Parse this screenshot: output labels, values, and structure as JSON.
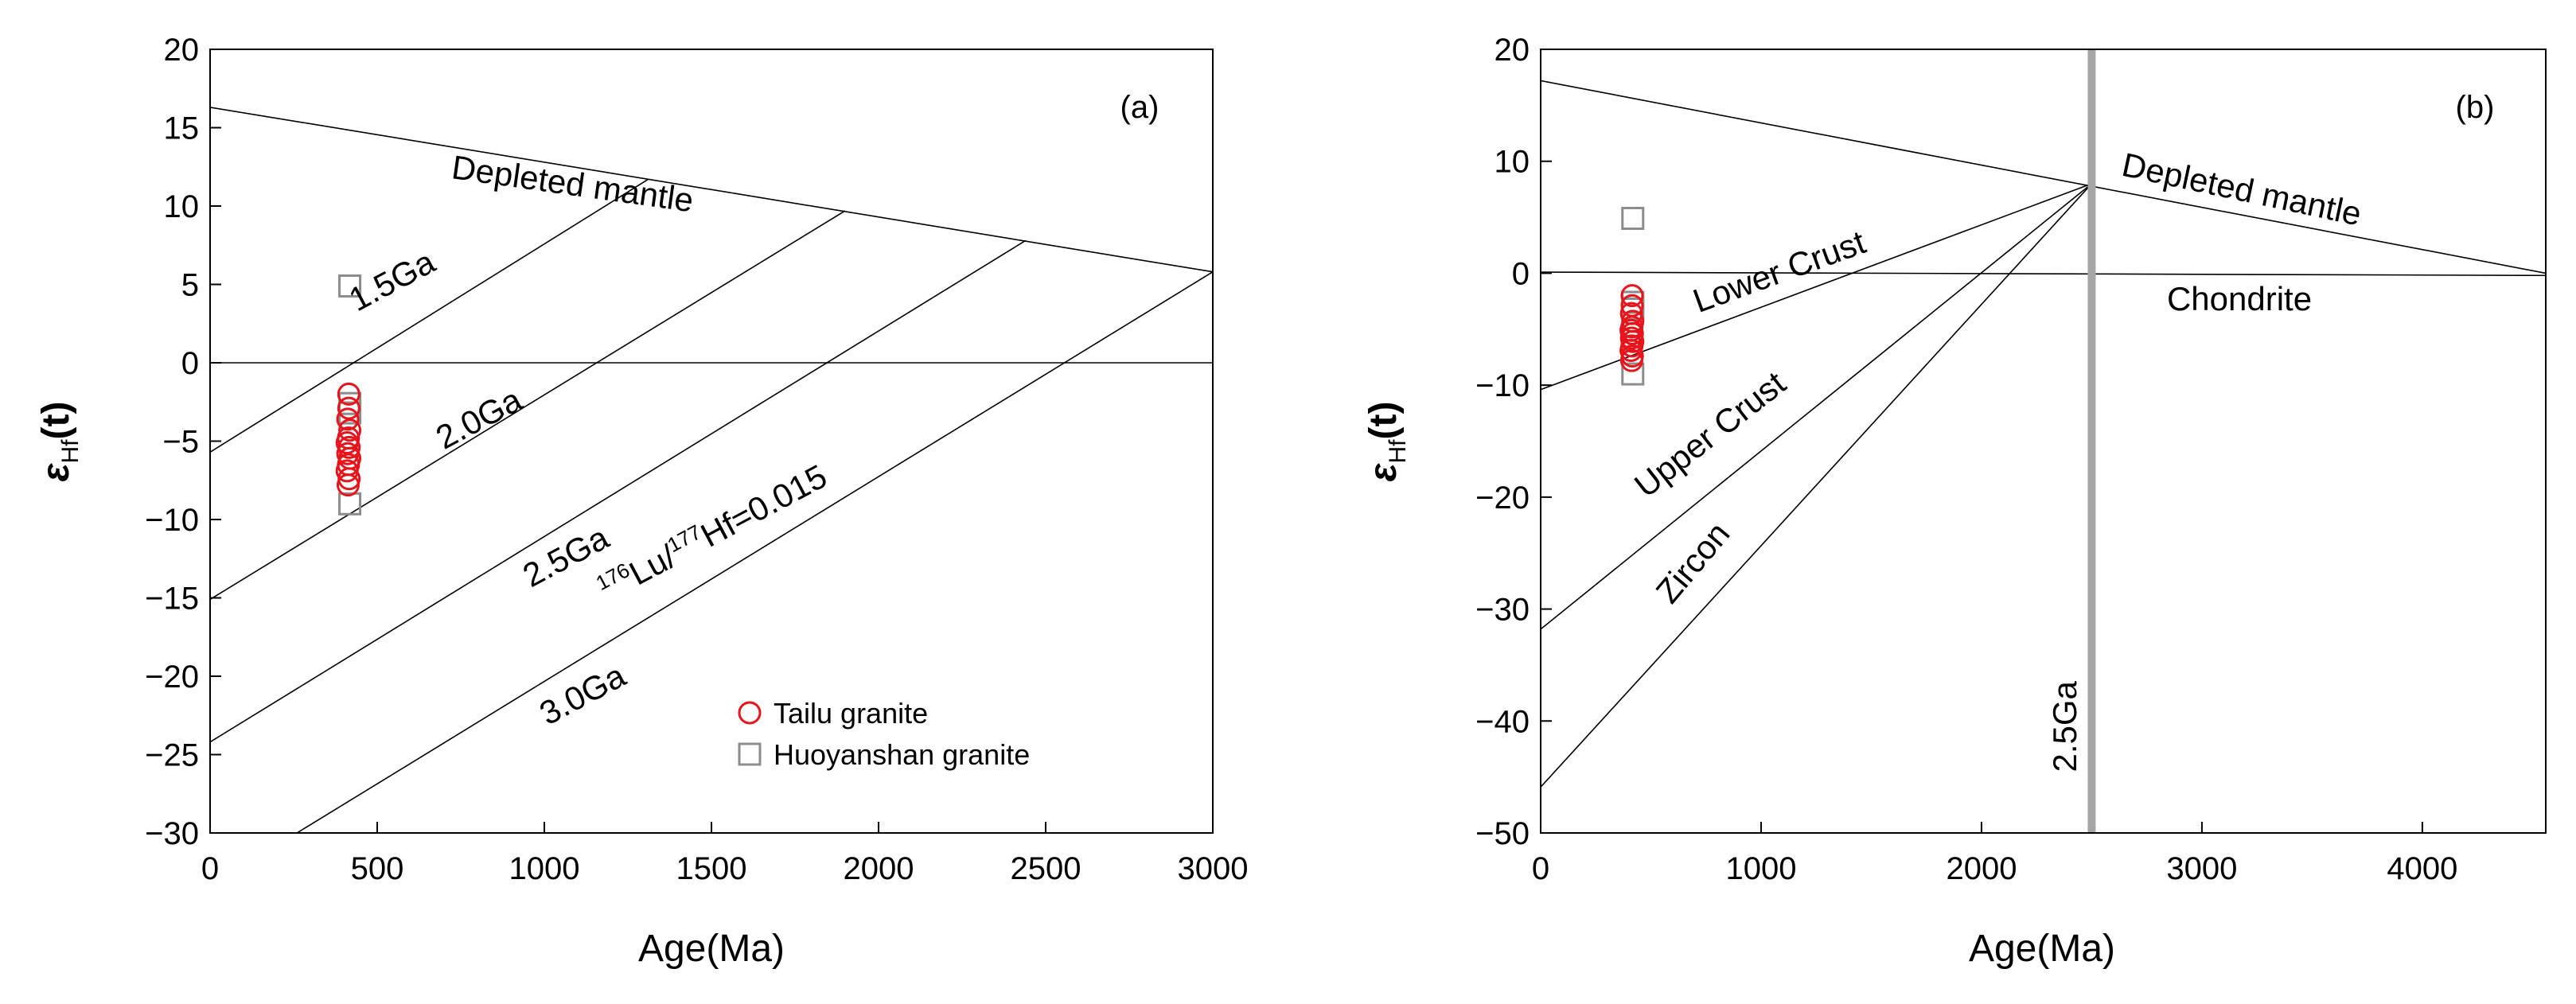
{
  "chart_data": [
    {
      "panel": "(a)",
      "type": "scatter",
      "xlabel": "Age(Ma)",
      "ylabel_main": "ε",
      "ylabel_sub": "Hf",
      "ylabel_tail": "(t)",
      "xlim": [
        0,
        3000
      ],
      "ylim": [
        -30,
        20
      ],
      "xticks": [
        "0",
        "500",
        "1000",
        "1500",
        "2000",
        "2500",
        "3000"
      ],
      "yticks": [
        "20",
        "15",
        "10",
        "5",
        "0",
        "−5",
        "−10",
        "−15",
        "−20",
        "−25",
        "−30"
      ],
      "legend_position": "bottom-right",
      "reference_lines": [
        {
          "id": "depleted-mantle",
          "x": [
            0,
            3000
          ],
          "y": [
            16.3,
            5.8
          ]
        },
        {
          "id": "chondrite",
          "x": [
            0,
            3000
          ],
          "y": [
            0,
            0
          ]
        },
        {
          "id": "evo-1.5ga",
          "x": [
            0,
            1310
          ],
          "y": [
            -5.7,
            11.7
          ]
        },
        {
          "id": "evo-2.0ga",
          "x": [
            0,
            1900
          ],
          "y": [
            -15.1,
            9.7
          ]
        },
        {
          "id": "evo-2.5ga",
          "x": [
            0,
            2440
          ],
          "y": [
            -24.2,
            7.8
          ]
        },
        {
          "id": "evo-3.0ga",
          "x": [
            260,
            3000
          ],
          "y": [
            -30,
            5.8
          ]
        }
      ],
      "annotations": [
        {
          "id": "depleted-mantle-label",
          "text": "Depleted mantle",
          "x": 1080,
          "y": 10.7,
          "angle": 8
        },
        {
          "id": "evo-1.5ga-label",
          "text": "1.5Ga",
          "x": 560,
          "y": 4.6,
          "angle": -28
        },
        {
          "id": "evo-2.0ga-label",
          "text": "2.0Ga",
          "x": 820,
          "y": -4.2,
          "angle": -28
        },
        {
          "id": "evo-2.5ga-label",
          "text": "2.5Ga",
          "x": 1080,
          "y": -13.0,
          "angle": -28
        },
        {
          "id": "evo-3.0ga-label",
          "text": "3.0Ga",
          "x": 1130,
          "y": -21.8,
          "angle": -28
        },
        {
          "id": "lu-hf-label",
          "text_sup1": "176",
          "text_mid1": "Lu/",
          "text_sup2": "177",
          "text_mid2": "Hf=0.015",
          "x": 1520,
          "y": -11.5,
          "angle": -28
        }
      ],
      "series": [
        {
          "name": "Tailu granite",
          "marker": "circle",
          "color": "#e8141b",
          "points": [
            [
              415,
              -2.0
            ],
            [
              415,
              -2.9
            ],
            [
              412,
              -3.6
            ],
            [
              418,
              -4.3
            ],
            [
              414,
              -4.8
            ],
            [
              410,
              -5.1
            ],
            [
              416,
              -5.4
            ],
            [
              412,
              -5.8
            ],
            [
              418,
              -6.1
            ],
            [
              414,
              -6.5
            ],
            [
              410,
              -6.9
            ],
            [
              416,
              -7.4
            ],
            [
              413,
              -7.8
            ]
          ]
        },
        {
          "name": "Huoyanshan granite",
          "marker": "square",
          "color": "#8c8c8c",
          "points": [
            [
              418,
              4.9
            ],
            [
              418,
              -2.6
            ],
            [
              418,
              -3.2
            ],
            [
              418,
              -9.0
            ]
          ]
        }
      ]
    },
    {
      "panel": "(b)",
      "type": "scatter",
      "xlabel": "Age(Ma)",
      "ylabel_main": "ε",
      "ylabel_sub": "Hf",
      "ylabel_tail": "(t)",
      "xlim": [
        0,
        4560
      ],
      "ylim": [
        -50,
        20
      ],
      "xticks": [
        {
          "value": 0,
          "label": "0"
        },
        {
          "value": 1000,
          "label": "1000"
        },
        {
          "value": 2000,
          "label": "2000"
        },
        {
          "value": 3000,
          "label": "3000"
        },
        {
          "value": 4000,
          "label": "4000"
        }
      ],
      "yticks": [
        {
          "value": 20,
          "label": "20"
        },
        {
          "value": 10,
          "label": "10"
        },
        {
          "value": 0,
          "label": "0"
        },
        {
          "value": -10,
          "label": "−10"
        },
        {
          "value": -20,
          "label": "−20"
        },
        {
          "value": -30,
          "label": "−30"
        },
        {
          "value": -40,
          "label": "−40"
        },
        {
          "value": -50,
          "label": "−50"
        }
      ],
      "reference_lines": [
        {
          "id": "depleted-mantle",
          "x": [
            0,
            4560
          ],
          "y": [
            17.2,
            0
          ]
        },
        {
          "id": "chondrite",
          "x": [
            0,
            4560
          ],
          "y": [
            0.1,
            -0.2
          ]
        },
        {
          "id": "lower-crust",
          "x": [
            0,
            2500
          ],
          "y": [
            -10.4,
            8.0
          ]
        },
        {
          "id": "upper-crust",
          "x": [
            0,
            2500
          ],
          "y": [
            -31.8,
            8.0
          ]
        },
        {
          "id": "zircon",
          "x": [
            0,
            2500
          ],
          "y": [
            -45.9,
            8.0
          ]
        }
      ],
      "vertical_line": {
        "id": "age-2.5ga",
        "x": 2500,
        "label": "2.5Ga",
        "color": "#a6a6a6"
      },
      "annotations": [
        {
          "id": "depleted-mantle-label",
          "text": "Depleted mantle",
          "x": 3170,
          "y": 6.5,
          "angle": 12
        },
        {
          "id": "chondrite-label",
          "text": "Chondrite",
          "x": 3170,
          "y": -3.3,
          "angle": 0
        },
        {
          "id": "lower-crust-label",
          "text": "Lower Crust",
          "x": 1100,
          "y": -0.8,
          "angle": -20
        },
        {
          "id": "upper-crust-label",
          "text": "Upper Crust",
          "x": 800,
          "y": -15.2,
          "angle": -38
        },
        {
          "id": "zircon-label",
          "text": "Zircon",
          "x": 730,
          "y": -26.5,
          "angle": -50
        },
        {
          "id": "age-2.5ga-label",
          "text": "2.5Ga",
          "x": 2430,
          "y": -40.5,
          "angle": -90
        }
      ],
      "series": [
        {
          "name": "Tailu granite",
          "marker": "circle",
          "color": "#e8141b",
          "points": [
            [
              415,
              -2.0
            ],
            [
              415,
              -2.9
            ],
            [
              412,
              -3.6
            ],
            [
              418,
              -4.3
            ],
            [
              414,
              -4.8
            ],
            [
              410,
              -5.1
            ],
            [
              416,
              -5.4
            ],
            [
              412,
              -5.8
            ],
            [
              418,
              -6.1
            ],
            [
              414,
              -6.5
            ],
            [
              410,
              -6.9
            ],
            [
              416,
              -7.4
            ],
            [
              413,
              -7.8
            ]
          ]
        },
        {
          "name": "Huoyanshan granite",
          "marker": "square",
          "color": "#8c8c8c",
          "points": [
            [
              418,
              4.9
            ],
            [
              418,
              -2.6
            ],
            [
              418,
              -3.2
            ],
            [
              418,
              -9.0
            ]
          ]
        }
      ]
    }
  ]
}
